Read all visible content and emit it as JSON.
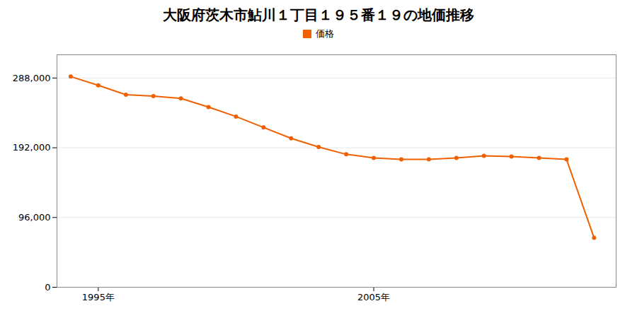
{
  "chart_data": {
    "type": "line",
    "title": "大阪府茨木市鮎川１丁目１９５番１９の地価推移",
    "x": [
      1994,
      1995,
      1996,
      1997,
      1998,
      1999,
      2000,
      2001,
      2002,
      2003,
      2004,
      2005,
      2006,
      2007,
      2008,
      2009,
      2010,
      2011,
      2012,
      2013
    ],
    "series": [
      {
        "name": "価格",
        "color": "#F06000",
        "marker": "circle",
        "values": [
          290000,
          278000,
          265000,
          263000,
          260000,
          248000,
          235000,
          220000,
          205000,
          193000,
          183000,
          178000,
          176000,
          176000,
          178000,
          181000,
          180000,
          178000,
          176000,
          68000
        ]
      }
    ],
    "xlim": [
      1993.5,
      2013.8
    ],
    "xticks": [
      {
        "value": 1995,
        "label": "1995年"
      },
      {
        "value": 2005,
        "label": "2005年"
      }
    ],
    "ylim": [
      0,
      320000
    ],
    "yticks": [
      0,
      {
        "value": 96000,
        "label": "96,000"
      },
      {
        "value": 192000,
        "label": "192,000"
      },
      {
        "value": 288000,
        "label": "288,000"
      }
    ],
    "grid": true,
    "legend": "top"
  }
}
